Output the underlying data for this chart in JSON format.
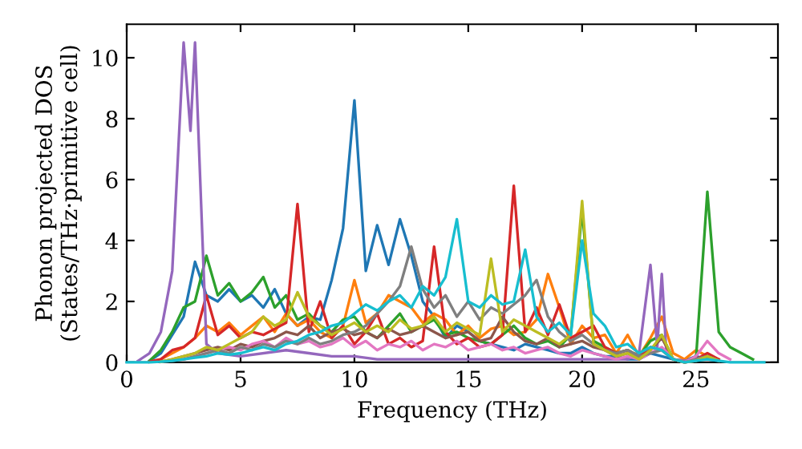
{
  "chart_data": {
    "type": "line",
    "xlabel": "Frequency (THz)",
    "ylabel": "Phonon projected DOS\n(States/THz·primitive cell)",
    "x": [
      0,
      0.5,
      1,
      1.5,
      2,
      2.5,
      3,
      3.5,
      4,
      4.5,
      5,
      5.5,
      6,
      6.5,
      7,
      7.5,
      8,
      8.5,
      9,
      9.5,
      10,
      10.5,
      11,
      11.5,
      12,
      12.5,
      13,
      13.5,
      14,
      14.5,
      15,
      15.5,
      16,
      16.5,
      17,
      17.5,
      18,
      18.5,
      19,
      19.5,
      20,
      20.5,
      21,
      21.5,
      22,
      22.5,
      23,
      23.5,
      24,
      24.5,
      25,
      25.5,
      26,
      26.5,
      27,
      27.5,
      28
    ],
    "xlim": [
      0,
      28.6
    ],
    "xticks": [
      0,
      5,
      10,
      15,
      20,
      25
    ],
    "ylim": [
      0,
      11.1
    ],
    "yticks": [
      0,
      2,
      4,
      6,
      8,
      10
    ],
    "grid": false,
    "legend": false,
    "marker": "none",
    "line_style": "solid",
    "series": [
      {
        "color": "#1f77b4",
        "values": [
          null,
          null,
          0.05,
          0.3,
          0.9,
          1.5,
          3.3,
          2.2,
          2.0,
          2.4,
          2.0,
          2.2,
          1.8,
          2.4,
          1.6,
          1.2,
          1.5,
          1.4,
          2.7,
          4.4,
          8.6,
          3.0,
          4.5,
          3.2,
          4.7,
          3.5,
          2.0,
          1.5,
          0.8,
          1.2,
          1.0,
          0.7,
          0.6,
          0.5,
          0.4,
          0.6,
          0.5,
          0.4,
          0.3,
          0.3,
          0.5,
          0.3,
          0.2,
          0.2,
          0.1,
          0.1,
          0.3,
          0.2,
          0.1,
          0.05,
          0.2,
          0.1,
          0.05,
          null,
          null,
          null,
          null
        ]
      },
      {
        "color": "#ff7f0e",
        "values": [
          null,
          null,
          0.02,
          0.1,
          0.3,
          0.5,
          0.8,
          1.2,
          1.0,
          1.3,
          0.9,
          1.2,
          1.5,
          1.0,
          1.6,
          1.2,
          1.4,
          1.0,
          0.8,
          1.2,
          2.7,
          1.3,
          1.6,
          2.2,
          2.0,
          1.8,
          1.3,
          1.6,
          1.4,
          0.9,
          1.2,
          0.8,
          1.1,
          1.2,
          0.9,
          1.0,
          1.4,
          2.9,
          1.8,
          0.6,
          1.2,
          0.8,
          0.9,
          0.3,
          0.9,
          0.2,
          0.8,
          1.5,
          0.3,
          0.1,
          0.4,
          0.2,
          0.1,
          null,
          null,
          null,
          null
        ]
      },
      {
        "color": "#2ca02c",
        "values": [
          null,
          null,
          0.05,
          0.4,
          1.0,
          1.8,
          2.0,
          3.5,
          2.2,
          2.6,
          2.0,
          2.3,
          2.8,
          1.8,
          2.2,
          1.4,
          1.6,
          1.2,
          1.0,
          1.4,
          1.5,
          1.0,
          0.8,
          1.2,
          1.6,
          1.0,
          1.2,
          1.4,
          0.9,
          1.0,
          0.8,
          0.7,
          0.6,
          0.9,
          1.2,
          0.8,
          0.6,
          0.7,
          0.5,
          0.9,
          5.0,
          0.7,
          0.5,
          0.3,
          0.4,
          0.2,
          0.7,
          0.9,
          0.1,
          0,
          0.1,
          5.6,
          1.0,
          0.5,
          0.3,
          0.1,
          null
        ]
      },
      {
        "color": "#d62728",
        "values": [
          null,
          null,
          0.02,
          0.1,
          0.4,
          0.5,
          0.8,
          2.2,
          0.9,
          1.2,
          0.8,
          1.0,
          0.9,
          1.1,
          1.3,
          5.2,
          1.0,
          2.0,
          0.8,
          1.2,
          0.6,
          1.0,
          1.6,
          0.6,
          0.8,
          0.5,
          0.7,
          3.8,
          1.0,
          0.6,
          0.8,
          0.5,
          0.6,
          0.9,
          5.8,
          1.0,
          1.8,
          0.9,
          1.9,
          0.8,
          1.0,
          1.2,
          0.5,
          0.3,
          0.4,
          0.2,
          0.5,
          0.4,
          0.1,
          0,
          0.1,
          0.3,
          0.1,
          null,
          null,
          null,
          null
        ]
      },
      {
        "color": "#9467bd",
        "x": [
          0.5,
          1,
          1.5,
          2,
          2.5,
          2.8,
          3,
          3.5,
          4,
          5,
          7,
          8,
          9,
          10,
          11,
          22,
          22.5,
          23,
          23.3,
          23.5,
          23.7,
          24,
          24.5,
          25,
          25.5,
          26
        ],
        "values": [
          0.05,
          0.3,
          1.0,
          3.0,
          10.5,
          7.6,
          10.5,
          0.6,
          0.3,
          0.2,
          0.4,
          0.3,
          0.2,
          0.2,
          0.1,
          0.1,
          0.3,
          3.2,
          0.5,
          2.9,
          0.3,
          0.1,
          0.05,
          0.1,
          0.2,
          0.05
        ]
      },
      {
        "color": "#8c564b",
        "values": [
          null,
          null,
          null,
          0.02,
          0.1,
          0.2,
          0.3,
          0.4,
          0.5,
          0.4,
          0.6,
          0.5,
          0.7,
          0.8,
          1.0,
          0.9,
          1.2,
          0.8,
          1.0,
          1.1,
          0.9,
          1.0,
          0.8,
          1.1,
          0.9,
          1.0,
          1.2,
          1.0,
          0.8,
          0.9,
          1.0,
          0.7,
          0.8,
          1.5,
          1.0,
          0.7,
          0.6,
          0.8,
          0.5,
          0.6,
          0.7,
          0.5,
          0.4,
          0.2,
          0.3,
          0.1,
          0.4,
          0.8,
          0.1,
          0,
          0.05,
          0.2,
          0.05,
          null,
          null,
          null,
          null
        ]
      },
      {
        "color": "#e377c2",
        "values": [
          null,
          null,
          null,
          null,
          null,
          0.1,
          0.2,
          0.3,
          0.4,
          0.5,
          0.4,
          0.6,
          0.7,
          0.5,
          0.8,
          0.6,
          0.7,
          0.5,
          0.6,
          0.8,
          0.5,
          0.7,
          0.4,
          0.6,
          0.5,
          0.7,
          0.4,
          0.6,
          0.5,
          0.7,
          0.4,
          0.5,
          0.6,
          0.4,
          0.5,
          0.3,
          0.4,
          0.5,
          0.3,
          0.2,
          0.4,
          0.3,
          0.2,
          0.1,
          0.2,
          0.1,
          0.3,
          0.5,
          0.1,
          0,
          0.2,
          0.7,
          0.3,
          0.1,
          null,
          null,
          null
        ]
      },
      {
        "color": "#7f7f7f",
        "values": [
          null,
          null,
          null,
          0.02,
          0.05,
          0.1,
          0.2,
          0.3,
          0.4,
          0.3,
          0.5,
          0.4,
          0.6,
          0.5,
          0.7,
          0.6,
          0.8,
          0.6,
          0.7,
          0.9,
          1.0,
          1.2,
          1.6,
          2.0,
          2.5,
          3.8,
          2.4,
          1.8,
          2.2,
          1.5,
          2.0,
          1.4,
          1.8,
          1.6,
          1.9,
          2.2,
          2.7,
          1.5,
          1.0,
          0.7,
          0.9,
          0.6,
          0.4,
          0.3,
          0.4,
          0.2,
          0.3,
          0.4,
          0.1,
          0,
          0.1,
          0.2,
          0.05,
          null,
          null,
          null,
          null
        ]
      },
      {
        "color": "#bcbd22",
        "values": [
          null,
          null,
          null,
          0.02,
          0.1,
          0.2,
          0.3,
          0.5,
          0.4,
          0.6,
          0.8,
          1.0,
          1.5,
          1.2,
          1.4,
          2.3,
          1.5,
          1.2,
          0.9,
          1.1,
          1.3,
          1.0,
          1.2,
          1.0,
          1.4,
          1.1,
          1.2,
          1.5,
          1.0,
          1.3,
          1.1,
          0.9,
          3.4,
          1.0,
          1.4,
          1.2,
          1.0,
          0.8,
          0.6,
          0.9,
          5.3,
          0.6,
          0.4,
          0.2,
          0.3,
          0.1,
          0.4,
          0.9,
          0.1,
          0,
          0.05,
          0.2,
          0.05,
          null,
          null,
          null,
          null
        ]
      },
      {
        "color": "#17becf",
        "values": [
          0,
          0,
          0,
          0.02,
          0.05,
          0.1,
          0.15,
          0.2,
          0.3,
          0.25,
          0.3,
          0.4,
          0.5,
          0.4,
          0.6,
          0.7,
          0.9,
          1.0,
          1.2,
          1.3,
          1.6,
          1.9,
          1.7,
          2.0,
          2.2,
          1.8,
          2.5,
          2.2,
          2.8,
          4.7,
          2.0,
          1.8,
          2.2,
          1.9,
          2.0,
          3.7,
          1.5,
          1.0,
          1.3,
          0.9,
          4.0,
          1.6,
          1.2,
          0.5,
          0.6,
          0.3,
          0.5,
          0.4,
          0.1,
          0,
          0.05,
          0.1,
          0.05,
          0,
          0,
          0,
          0
        ]
      }
    ]
  }
}
